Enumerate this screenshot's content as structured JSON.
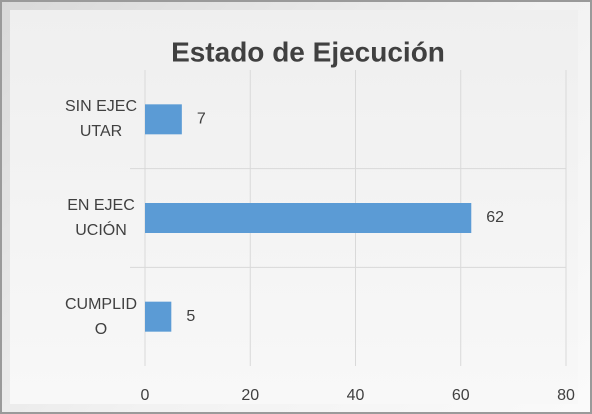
{
  "chart_data": {
    "type": "hbar",
    "title": "Estado de Ejecución",
    "categories": [
      "SIN EJECUTAR",
      "EN EJECUCIÓN",
      "CUMPLIDO"
    ],
    "values": [
      7,
      62,
      5
    ],
    "color": "#5b9bd5",
    "xlim": [
      0,
      80
    ],
    "xticks": [
      0,
      20,
      40,
      60,
      80
    ],
    "grid": true
  }
}
